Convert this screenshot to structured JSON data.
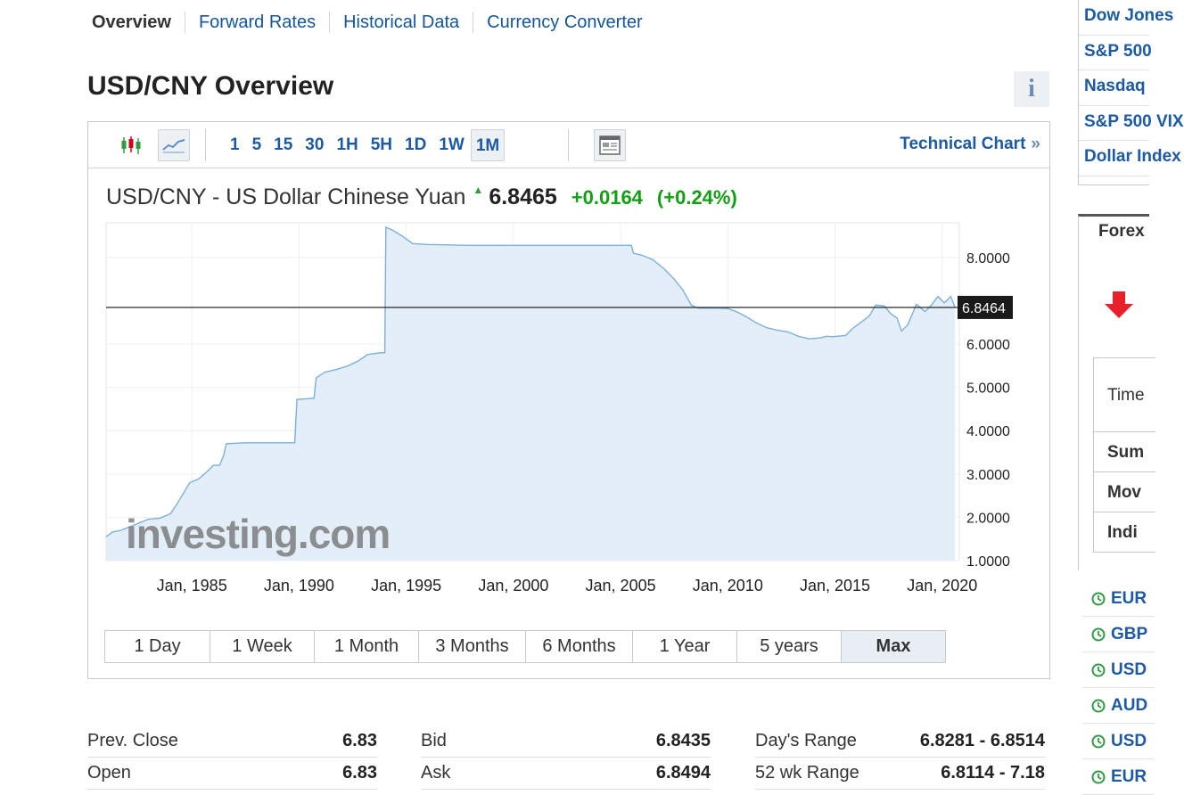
{
  "tabs": [
    "Overview",
    "Forward Rates",
    "Historical Data",
    "Currency Converter"
  ],
  "page_title": "USD/CNY Overview",
  "info_icon": "i",
  "toolbar": {
    "icons": [
      "candlestick-icon",
      "line-chart-icon",
      "chart-layout-icon"
    ],
    "intervals": [
      "1",
      "5",
      "15",
      "30",
      "1H",
      "5H",
      "1D",
      "1W",
      "1M"
    ],
    "active_interval": "1M",
    "technical_chart": "Technical Chart",
    "technical_chart_icon": "»"
  },
  "quote": {
    "name": "USD/CNY - US Dollar Chinese Yuan",
    "price": "6.8465",
    "change": "+0.0164",
    "change_pct": "(+0.24%)",
    "up_color": "#12a012"
  },
  "chart_data": {
    "type": "area",
    "title": "",
    "xlabel": "",
    "ylabel": "",
    "x_ticks": [
      "Jan, 1985",
      "Jan, 1990",
      "Jan, 1995",
      "Jan, 2000",
      "Jan, 2005",
      "Jan, 2010",
      "Jan, 2015",
      "Jan, 2020"
    ],
    "y_ticks": [
      "1.0000",
      "2.0000",
      "3.0000",
      "4.0000",
      "5.0000",
      "6.0000",
      "8.0000"
    ],
    "xlim": [
      1981,
      2020.8
    ],
    "ylim": [
      1.0,
      8.8
    ],
    "current_value_label": "6.8464",
    "current_value": 6.8464,
    "watermark": "investing.com",
    "grid": true,
    "series": [
      {
        "values": [
          [
            1981.0,
            1.55
          ],
          [
            1981.3,
            1.66
          ],
          [
            1981.7,
            1.7
          ],
          [
            1982.2,
            1.8
          ],
          [
            1982.6,
            1.88
          ],
          [
            1983.0,
            1.96
          ],
          [
            1983.5,
            1.98
          ],
          [
            1984.0,
            2.08
          ],
          [
            1984.3,
            2.3
          ],
          [
            1984.6,
            2.55
          ],
          [
            1984.9,
            2.8
          ],
          [
            1985.3,
            2.88
          ],
          [
            1985.7,
            3.05
          ],
          [
            1986.0,
            3.2
          ],
          [
            1986.3,
            3.2
          ],
          [
            1986.5,
            3.45
          ],
          [
            1986.6,
            3.7
          ],
          [
            1987.5,
            3.72
          ],
          [
            1988.5,
            3.72
          ],
          [
            1989.8,
            3.72
          ],
          [
            1989.9,
            4.72
          ],
          [
            1990.7,
            4.75
          ],
          [
            1990.8,
            5.22
          ],
          [
            1991.2,
            5.35
          ],
          [
            1991.8,
            5.42
          ],
          [
            1992.3,
            5.5
          ],
          [
            1992.8,
            5.62
          ],
          [
            1993.2,
            5.76
          ],
          [
            1993.8,
            5.8
          ],
          [
            1994.0,
            5.8
          ],
          [
            1994.05,
            8.7
          ],
          [
            1994.4,
            8.62
          ],
          [
            1994.8,
            8.5
          ],
          [
            1995.3,
            8.32
          ],
          [
            1996.0,
            8.3
          ],
          [
            1997.0,
            8.29
          ],
          [
            1998.0,
            8.28
          ],
          [
            2000.0,
            8.28
          ],
          [
            2003.0,
            8.28
          ],
          [
            2005.5,
            8.28
          ],
          [
            2005.6,
            8.1
          ],
          [
            2006.0,
            8.05
          ],
          [
            2006.5,
            7.95
          ],
          [
            2007.0,
            7.75
          ],
          [
            2007.5,
            7.5
          ],
          [
            2007.9,
            7.25
          ],
          [
            2008.3,
            6.9
          ],
          [
            2008.6,
            6.83
          ],
          [
            2009.0,
            6.83
          ],
          [
            2009.5,
            6.83
          ],
          [
            2010.0,
            6.82
          ],
          [
            2010.4,
            6.75
          ],
          [
            2010.8,
            6.65
          ],
          [
            2011.3,
            6.5
          ],
          [
            2011.8,
            6.38
          ],
          [
            2012.3,
            6.32
          ],
          [
            2012.8,
            6.28
          ],
          [
            2013.3,
            6.18
          ],
          [
            2013.8,
            6.12
          ],
          [
            2014.3,
            6.14
          ],
          [
            2014.6,
            6.18
          ],
          [
            2014.9,
            6.17
          ],
          [
            2015.5,
            6.2
          ],
          [
            2015.8,
            6.35
          ],
          [
            2016.2,
            6.5
          ],
          [
            2016.6,
            6.65
          ],
          [
            2016.9,
            6.9
          ],
          [
            2017.3,
            6.88
          ],
          [
            2017.6,
            6.7
          ],
          [
            2017.9,
            6.6
          ],
          [
            2018.1,
            6.3
          ],
          [
            2018.4,
            6.45
          ],
          [
            2018.8,
            6.92
          ],
          [
            2019.2,
            6.75
          ],
          [
            2019.5,
            6.9
          ],
          [
            2019.8,
            7.1
          ],
          [
            2020.1,
            6.95
          ],
          [
            2020.4,
            7.1
          ],
          [
            2020.6,
            6.85
          ]
        ]
      }
    ]
  },
  "time_ranges": [
    "1 Day",
    "1 Week",
    "1 Month",
    "3 Months",
    "6 Months",
    "1 Year",
    "5 years",
    "Max"
  ],
  "active_range": "Max",
  "stats": [
    [
      {
        "k": "Prev. Close",
        "v": "6.83"
      },
      {
        "k": "Open",
        "v": "6.83"
      }
    ],
    [
      {
        "k": "Bid",
        "v": "6.8435"
      },
      {
        "k": "Ask",
        "v": "6.8494"
      }
    ],
    [
      {
        "k": "Day's Range",
        "v": "6.8281 - 6.8514"
      },
      {
        "k": "52 wk Range",
        "v": "6.8114 - 7.18"
      }
    ]
  ],
  "sidebar": {
    "indices": [
      "Dow Jones",
      "S&P 500",
      "Nasdaq",
      "S&P 500 VIX",
      "Dollar Index"
    ],
    "forex_title": "Forex",
    "table_labels": [
      "Time",
      "Sum",
      "Mov",
      "Indi"
    ],
    "pairs": [
      "EUR",
      "GBP",
      "USD",
      "AUD",
      "USD",
      "EUR"
    ],
    "pair_icon_color": "#2e9d3f"
  }
}
